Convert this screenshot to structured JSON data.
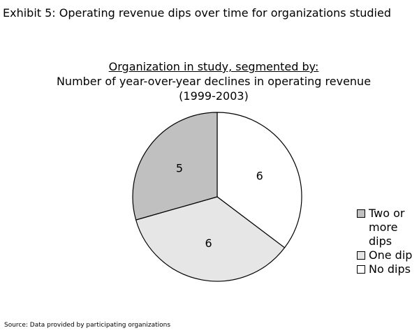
{
  "exhibit_title": "Exhibit 5: Operating revenue dips over time for organizations studied",
  "source": "Source: Data provided by participating organizations",
  "colors": {
    "two_or_more_dips": "#c0c0c0",
    "one_dip": "#e6e6e6",
    "no_dips": "#ffffff",
    "outline": "#000000"
  },
  "chart_data": {
    "type": "pie",
    "title_line1": "Organization in study, segmented by:",
    "title_line2": "Number of year-over-year declines in operating revenue",
    "title_line3": "(1999-2003)",
    "slices": [
      {
        "label": "No dips",
        "value": 6,
        "color": "#ffffff"
      },
      {
        "label": "One dip",
        "value": 6,
        "color": "#e6e6e6"
      },
      {
        "label": "Two or more dips",
        "value": 5,
        "color": "#c0c0c0"
      }
    ],
    "legend": [
      {
        "label": "Two or more dips",
        "color": "#c0c0c0"
      },
      {
        "label": "One dip",
        "color": "#e6e6e6"
      },
      {
        "label": "No dips",
        "color": "#ffffff"
      }
    ],
    "legend_position": "right",
    "data_labels": true
  }
}
